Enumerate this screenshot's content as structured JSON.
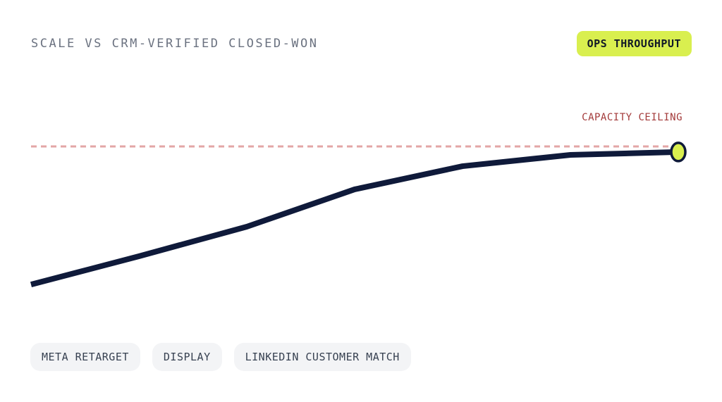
{
  "chart_data": {
    "type": "line",
    "title": "SCALE VS CRM-VERIFIED CLOSED-WON",
    "badge": "OPS THROUGHPUT",
    "categories": [
      null,
      null,
      null,
      null,
      null,
      null,
      null
    ],
    "series": [
      {
        "name": null,
        "color": "#0f1a3a",
        "values": [
          18.3,
          35,
          52.5,
          74.6,
          88.3,
          95,
          96.7
        ]
      }
    ],
    "marker_color": "#d9ef4f",
    "ceiling": {
      "value": 100,
      "label": "CAPACITY CEILING",
      "color": "#e3a6a6",
      "label_color": "#a33a3a"
    },
    "ylim": [
      0,
      100
    ],
    "tags": [
      "META RETARGET",
      "DISPLAY",
      "LINKEDIN CUSTOMER MATCH"
    ]
  }
}
